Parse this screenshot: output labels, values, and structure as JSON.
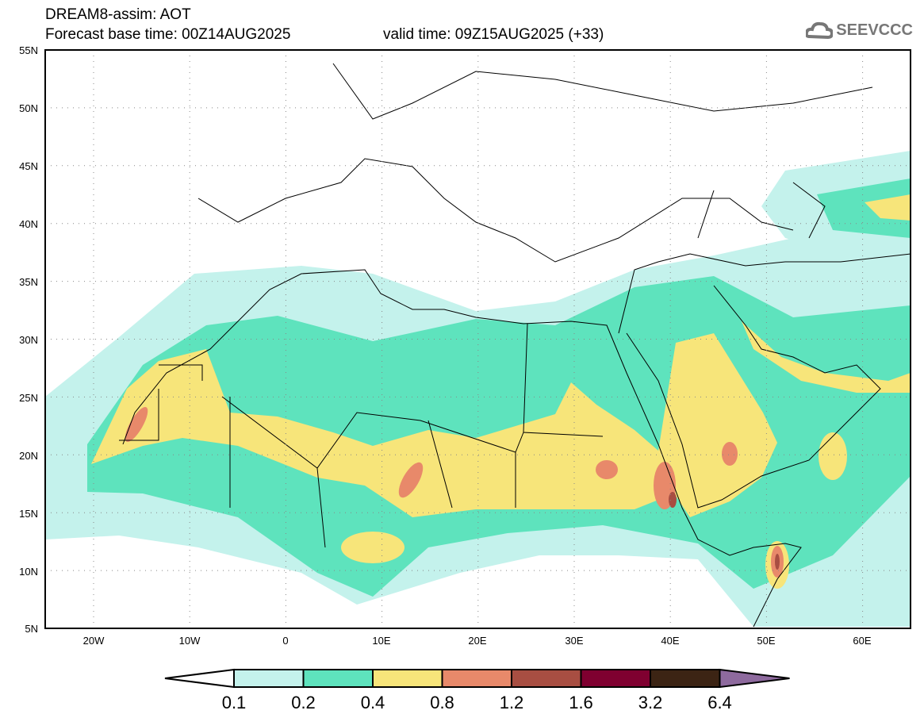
{
  "header": {
    "title": "DREAM8-assim: AOT",
    "base_time": "Forecast base time: 00Z14AUG2025",
    "valid_time": "valid time: 09Z15AUG2025 (+33)"
  },
  "logo": {
    "text": "SEEVCCC"
  },
  "axes": {
    "lat_labels": [
      "55N",
      "50N",
      "45N",
      "40N",
      "35N",
      "30N",
      "25N",
      "20N",
      "15N",
      "10N",
      "5N"
    ],
    "lon_labels": [
      "20W",
      "10W",
      "0",
      "10E",
      "20E",
      "30E",
      "40E",
      "50E",
      "60E"
    ]
  },
  "colorbar": {
    "levels": [
      "0.1",
      "0.2",
      "0.4",
      "0.8",
      "1.2",
      "1.6",
      "3.2",
      "6.4"
    ],
    "colors": [
      "#ffffff",
      "#c4f2ec",
      "#5ee3bd",
      "#f7e57a",
      "#e8896a",
      "#a84e42",
      "#7f0030",
      "#3c2414",
      "#8e6a9e"
    ]
  }
}
